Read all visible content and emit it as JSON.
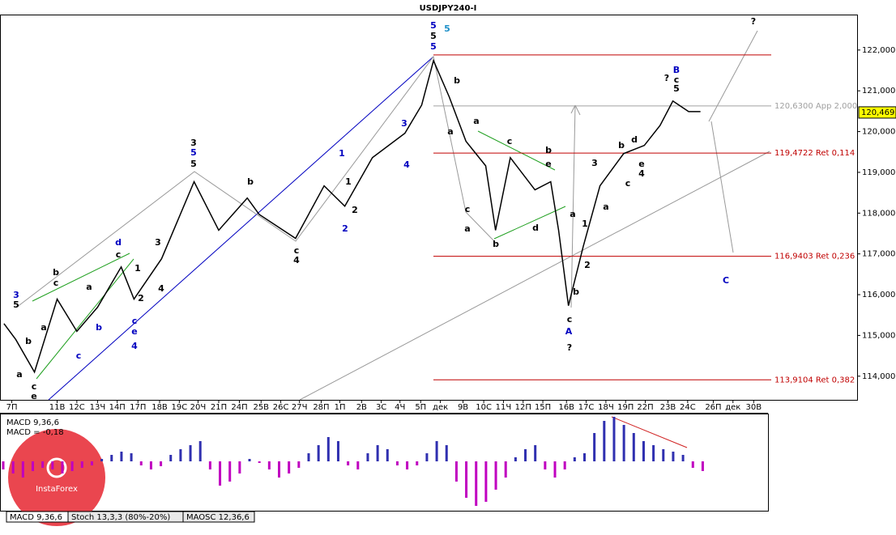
{
  "chart_data": [
    {
      "type": "line",
      "title": "USDJPY240-I",
      "x": [
        0.4,
        1.6,
        3.5,
        5.8,
        7.8,
        9.9,
        12.3,
        13.6,
        16.4,
        19.7,
        22.2,
        25.1,
        26.3,
        30.0,
        32.9,
        35.0,
        37.8,
        41.1,
        42.8,
        44.0,
        45.6,
        47.3,
        49.3,
        50.3,
        51.8,
        54.3,
        55.9,
        56.7,
        57.7,
        59.2,
        60.9,
        63.3,
        65.4,
        67.0,
        68.3,
        69.9,
        71.1
      ],
      "values": [
        115.29,
        114.9,
        114.1,
        115.89,
        115.1,
        115.69,
        116.68,
        115.89,
        116.88,
        118.77,
        117.58,
        118.37,
        117.97,
        117.38,
        118.67,
        118.17,
        119.36,
        119.96,
        120.65,
        121.74,
        120.85,
        119.76,
        119.16,
        117.58,
        119.36,
        118.57,
        118.77,
        117.58,
        115.73,
        117.18,
        118.67,
        119.46,
        119.66,
        120.15,
        120.75,
        120.49,
        120.49
      ],
      "color": "#000000",
      "xlim": [
        0,
        87
      ],
      "ylim": [
        113.42,
        122.87
      ],
      "xticks": [
        {
          "value": 1.2,
          "label": "7П"
        },
        {
          "value": 5.8,
          "label": "11В"
        },
        {
          "value": 7.8,
          "label": "12С"
        },
        {
          "value": 9.9,
          "label": "13Ч"
        },
        {
          "value": 11.9,
          "label": "14П"
        },
        {
          "value": 14.0,
          "label": "17П"
        },
        {
          "value": 16.2,
          "label": "18В"
        },
        {
          "value": 18.2,
          "label": "19С"
        },
        {
          "value": 20.1,
          "label": "20Ч"
        },
        {
          "value": 22.2,
          "label": "21П"
        },
        {
          "value": 24.3,
          "label": "24П"
        },
        {
          "value": 26.5,
          "label": "25В"
        },
        {
          "value": 28.5,
          "label": "26С"
        },
        {
          "value": 30.4,
          "label": "27Ч"
        },
        {
          "value": 32.6,
          "label": "28П"
        },
        {
          "value": 34.5,
          "label": "1П"
        },
        {
          "value": 36.7,
          "label": "2В"
        },
        {
          "value": 38.7,
          "label": "3С"
        },
        {
          "value": 40.6,
          "label": "4Ч"
        },
        {
          "value": 42.7,
          "label": "5П"
        },
        {
          "value": 44.7,
          "label": "дек"
        },
        {
          "value": 47.0,
          "label": "9В"
        },
        {
          "value": 49.1,
          "label": "10С"
        },
        {
          "value": 51.1,
          "label": "11Ч"
        },
        {
          "value": 53.1,
          "label": "12П"
        },
        {
          "value": 55.1,
          "label": "15П"
        },
        {
          "value": 57.5,
          "label": "16В"
        },
        {
          "value": 59.5,
          "label": "17С"
        },
        {
          "value": 61.5,
          "label": "18Ч"
        },
        {
          "value": 63.5,
          "label": "19П"
        },
        {
          "value": 65.5,
          "label": "22П"
        },
        {
          "value": 67.8,
          "label": "23В"
        },
        {
          "value": 69.8,
          "label": "24С"
        },
        {
          "value": 72.4,
          "label": "26П"
        },
        {
          "value": 74.4,
          "label": "дек"
        },
        {
          "value": 76.5,
          "label": "30В"
        }
      ],
      "yticks": [
        {
          "value": 114,
          "label": "114,000"
        },
        {
          "value": 115,
          "label": "115,000"
        },
        {
          "value": 116,
          "label": "116,000"
        },
        {
          "value": 117,
          "label": "117,000"
        },
        {
          "value": 118,
          "label": "118,000"
        },
        {
          "value": 119,
          "label": "119,000"
        },
        {
          "value": 120,
          "label": "120,000"
        },
        {
          "value": 121,
          "label": "121,000"
        },
        {
          "value": 122,
          "label": "122,000"
        }
      ],
      "last_price": {
        "value": 120.469,
        "label": "120,469"
      },
      "levels": [
        {
          "value": 121.88,
          "color": "#c00000"
        },
        {
          "value": 120.63,
          "label": "120,6300 App 2,000",
          "color": "#a0a0a0"
        },
        {
          "value": 119.4722,
          "label": "119,4722 Ret 0,114",
          "color": "#c00000"
        },
        {
          "value": 116.9403,
          "label": "116,9403 Ret 0,236",
          "color": "#c00000"
        },
        {
          "value": 113.9104,
          "label": "113,9104 Ret 0,382",
          "color": "#c00000"
        }
      ],
      "annotations": [
        {
          "text": "5",
          "color": "#0000c0"
        },
        {
          "text": "5",
          "color": "#000000"
        },
        {
          "text": "5",
          "color": "#0000c0"
        },
        {
          "text": "5",
          "color": "#1e90c8"
        },
        {
          "text": "B",
          "color": "#0000c0"
        },
        {
          "text": "?",
          "color": "#000000"
        },
        {
          "text": "c",
          "color": "#000000"
        },
        {
          "text": "5",
          "color": "#000000"
        },
        {
          "text": "A",
          "color": "#0000c0"
        },
        {
          "text": "c",
          "color": "#000000"
        },
        {
          "text": "?",
          "color": "#000000"
        },
        {
          "text": "C",
          "color": "#0000c0"
        },
        {
          "text": "?",
          "color": "#000000"
        },
        {
          "text": "3",
          "color": "#000000"
        },
        {
          "text": "5",
          "color": "#0000c0"
        },
        {
          "text": "5",
          "color": "#000000"
        },
        {
          "text": "b",
          "color": "#000000"
        },
        {
          "text": "c",
          "color": "#000000"
        },
        {
          "text": "4",
          "color": "#000000"
        },
        {
          "text": "1",
          "color": "#0000c0"
        },
        {
          "text": "1",
          "color": "#000000"
        },
        {
          "text": "2",
          "color": "#000000"
        },
        {
          "text": "2",
          "color": "#0000c0"
        },
        {
          "text": "3",
          "color": "#0000c0"
        },
        {
          "text": "4",
          "color": "#0000c0"
        },
        {
          "text": "d",
          "color": "#0000c0"
        },
        {
          "text": "c",
          "color": "#000000"
        },
        {
          "text": "3",
          "color": "#000000"
        },
        {
          "text": "1",
          "color": "#000000"
        },
        {
          "text": "2",
          "color": "#000000"
        },
        {
          "text": "4",
          "color": "#000000"
        },
        {
          "text": "c",
          "color": "#0000c0"
        },
        {
          "text": "e",
          "color": "#0000c0"
        },
        {
          "text": "4",
          "color": "#0000c0"
        },
        {
          "text": "b",
          "color": "#000000"
        },
        {
          "text": "c",
          "color": "#000000"
        },
        {
          "text": "a",
          "color": "#000000"
        },
        {
          "text": "b",
          "color": "#000000"
        },
        {
          "text": "a",
          "color": "#000000"
        },
        {
          "text": "c",
          "color": "#000000"
        },
        {
          "text": "e",
          "color": "#000000"
        },
        {
          "text": "3",
          "color": "#0000c0"
        },
        {
          "text": "5",
          "color": "#000000"
        },
        {
          "text": "a",
          "color": "#000000"
        },
        {
          "text": "b",
          "color": "#0000c0"
        },
        {
          "text": "c",
          "color": "#0000c0"
        },
        {
          "text": "a",
          "color": "#000000"
        },
        {
          "text": "c",
          "color": "#000000"
        },
        {
          "text": "b",
          "color": "#000000"
        },
        {
          "text": "a",
          "color": "#000000"
        },
        {
          "text": "a",
          "color": "#000000"
        },
        {
          "text": "c",
          "color": "#000000"
        },
        {
          "text": "b",
          "color": "#000000"
        },
        {
          "text": "e",
          "color": "#000000"
        },
        {
          "text": "d",
          "color": "#000000"
        },
        {
          "text": "b",
          "color": "#000000"
        },
        {
          "text": "a",
          "color": "#000000"
        },
        {
          "text": "1",
          "color": "#000000"
        },
        {
          "text": "2",
          "color": "#000000"
        },
        {
          "text": "b",
          "color": "#000000"
        },
        {
          "text": "3",
          "color": "#000000"
        },
        {
          "text": "a",
          "color": "#000000"
        },
        {
          "text": "c",
          "color": "#000000"
        },
        {
          "text": "b",
          "color": "#000000"
        },
        {
          "text": "d",
          "color": "#000000"
        },
        {
          "text": "e",
          "color": "#000000"
        },
        {
          "text": "4",
          "color": "#000000"
        }
      ]
    },
    {
      "type": "histogram-bars",
      "title": "MACD 9,36,6",
      "subtitle": "MACD = -0,18",
      "values": [
        -0.1,
        -0.15,
        -0.2,
        -0.12,
        -0.08,
        -0.1,
        -0.15,
        -0.12,
        -0.08,
        -0.05,
        0.03,
        0.08,
        0.12,
        0.1,
        -0.05,
        -0.1,
        -0.06,
        0.08,
        0.15,
        0.2,
        0.25,
        -0.1,
        -0.3,
        -0.25,
        -0.15,
        0.03,
        -0.02,
        -0.1,
        -0.2,
        -0.15,
        -0.08,
        0.1,
        0.2,
        0.3,
        0.25,
        -0.05,
        -0.1,
        0.1,
        0.2,
        0.15,
        -0.05,
        -0.1,
        -0.05,
        0.1,
        0.25,
        0.2,
        -0.25,
        -0.45,
        -0.55,
        -0.5,
        -0.35,
        -0.2,
        0.05,
        0.15,
        0.2,
        -0.1,
        -0.2,
        -0.1,
        0.05,
        0.1,
        0.35,
        0.5,
        0.55,
        0.45,
        0.35,
        0.25,
        0.2,
        0.15,
        0.12,
        0.08,
        -0.08,
        -0.12
      ],
      "ylim": [
        -0.6,
        0.55
      ],
      "positive_color": "#3030b0",
      "negative_color": "#c000c0"
    }
  ],
  "tabs": [
    "MACD 9,36,6",
    "Stoch 13,3,3 (80%-20%)",
    "MAOSC 12,36,6"
  ],
  "logo": "InstaForex"
}
